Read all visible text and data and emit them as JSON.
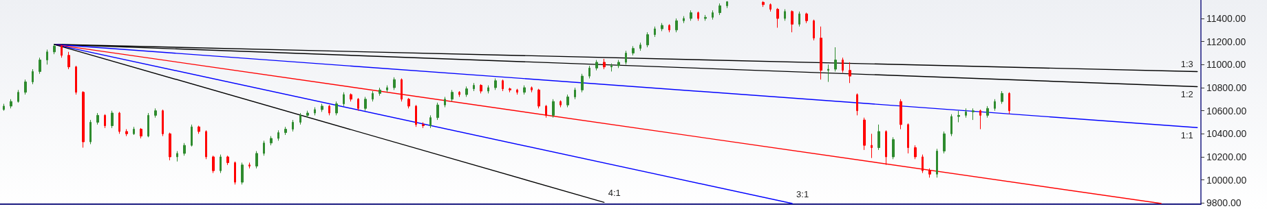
{
  "chart_data": {
    "type": "candlestick",
    "categories": [
      null,
      null,
      null,
      null,
      null,
      null,
      null,
      null,
      null,
      null,
      null,
      null,
      null,
      null,
      null,
      null,
      null,
      null,
      null,
      null,
      null,
      null,
      null,
      null,
      null,
      null,
      null,
      null,
      null,
      null,
      null,
      null,
      null,
      null,
      null,
      null,
      null,
      null,
      null,
      null,
      null,
      null,
      null,
      null,
      null,
      null,
      null,
      null,
      null,
      null,
      null,
      null,
      null,
      null,
      null,
      null,
      null,
      null,
      null,
      null,
      null,
      null,
      null,
      null,
      null,
      null,
      null,
      null,
      null,
      null,
      null,
      null,
      null,
      null,
      null,
      null,
      null,
      null,
      null,
      null,
      null,
      null,
      null,
      null,
      null,
      null,
      null,
      null,
      null,
      null,
      null,
      null,
      null,
      null,
      null,
      null,
      null,
      null,
      null,
      null,
      null,
      null,
      null,
      null,
      null,
      null,
      null,
      null,
      null,
      null,
      null,
      null,
      null,
      null,
      null,
      null,
      null,
      null,
      null,
      null,
      null,
      null,
      null,
      null,
      null,
      null,
      null,
      null,
      null,
      null,
      null,
      null,
      null,
      null,
      null,
      null,
      null,
      null,
      null,
      null,
      null,
      null,
      null,
      null,
      null,
      null,
      null,
      null,
      null,
      null,
      null,
      null,
      null,
      null,
      null,
      null,
      null,
      null,
      null,
      null,
      null,
      null,
      null,
      null,
      null,
      null
    ],
    "ohlc": [
      [
        10610,
        10660,
        10600,
        10640
      ],
      [
        10640,
        10700,
        10620,
        10680
      ],
      [
        10680,
        10780,
        10670,
        10760
      ],
      [
        10760,
        10870,
        10740,
        10850
      ],
      [
        10850,
        10960,
        10830,
        10940
      ],
      [
        10940,
        11060,
        10920,
        11040
      ],
      [
        11040,
        11130,
        11000,
        11110
      ],
      [
        11110,
        11175,
        11090,
        11160
      ],
      [
        11160,
        11170,
        11060,
        11080
      ],
      [
        11080,
        11110,
        10960,
        10980
      ],
      [
        10980,
        10990,
        10740,
        10760
      ],
      [
        10760,
        10770,
        10280,
        10330
      ],
      [
        10330,
        10520,
        10310,
        10500
      ],
      [
        10500,
        10580,
        10480,
        10560
      ],
      [
        10560,
        10570,
        10450,
        10470
      ],
      [
        10470,
        10600,
        10450,
        10580
      ],
      [
        10580,
        10590,
        10400,
        10420
      ],
      [
        10420,
        10440,
        10380,
        10400
      ],
      [
        10400,
        10460,
        10390,
        10440
      ],
      [
        10440,
        10450,
        10360,
        10380
      ],
      [
        10380,
        10580,
        10370,
        10560
      ],
      [
        10560,
        10620,
        10540,
        10600
      ],
      [
        10600,
        10610,
        10380,
        10400
      ],
      [
        10400,
        10410,
        10170,
        10200
      ],
      [
        10200,
        10250,
        10160,
        10230
      ],
      [
        10230,
        10320,
        10210,
        10300
      ],
      [
        10300,
        10480,
        10290,
        10460
      ],
      [
        10460,
        10470,
        10400,
        10420
      ],
      [
        10420,
        10430,
        10180,
        10200
      ],
      [
        10200,
        10210,
        10060,
        10080
      ],
      [
        10080,
        10220,
        10060,
        10200
      ],
      [
        10200,
        10210,
        10130,
        10150
      ],
      [
        10150,
        10160,
        9960,
        9980
      ],
      [
        9980,
        10150,
        9960,
        10130
      ],
      [
        10130,
        10150,
        10100,
        10120
      ],
      [
        10120,
        10250,
        10100,
        10230
      ],
      [
        10230,
        10340,
        10210,
        10320
      ],
      [
        10320,
        10380,
        10300,
        10360
      ],
      [
        10360,
        10430,
        10340,
        10410
      ],
      [
        10410,
        10460,
        10390,
        10440
      ],
      [
        10440,
        10520,
        10420,
        10500
      ],
      [
        10500,
        10580,
        10480,
        10560
      ],
      [
        10560,
        10600,
        10540,
        10580
      ],
      [
        10580,
        10630,
        10560,
        10610
      ],
      [
        10610,
        10660,
        10590,
        10640
      ],
      [
        10640,
        10650,
        10560,
        10580
      ],
      [
        10580,
        10680,
        10560,
        10660
      ],
      [
        10660,
        10760,
        10640,
        10740
      ],
      [
        10740,
        10750,
        10680,
        10700
      ],
      [
        10700,
        10710,
        10600,
        10620
      ],
      [
        10620,
        10720,
        10600,
        10700
      ],
      [
        10700,
        10770,
        10680,
        10750
      ],
      [
        10750,
        10800,
        10730,
        10780
      ],
      [
        10780,
        10820,
        10760,
        10800
      ],
      [
        10800,
        10890,
        10780,
        10870
      ],
      [
        10870,
        10880,
        10680,
        10700
      ],
      [
        10700,
        10710,
        10620,
        10640
      ],
      [
        10640,
        10650,
        10460,
        10480
      ],
      [
        10480,
        10500,
        10450,
        10470
      ],
      [
        10470,
        10560,
        10450,
        10540
      ],
      [
        10540,
        10670,
        10520,
        10650
      ],
      [
        10650,
        10720,
        10630,
        10700
      ],
      [
        10700,
        10780,
        10680,
        10760
      ],
      [
        10760,
        10770,
        10720,
        10740
      ],
      [
        10740,
        10810,
        10720,
        10790
      ],
      [
        10790,
        10840,
        10770,
        10820
      ],
      [
        10820,
        10830,
        10750,
        10770
      ],
      [
        10770,
        10820,
        10750,
        10800
      ],
      [
        10800,
        10880,
        10780,
        10860
      ],
      [
        10860,
        10870,
        10770,
        10790
      ],
      [
        10790,
        10800,
        10760,
        10780
      ],
      [
        10780,
        10790,
        10740,
        10760
      ],
      [
        10760,
        10820,
        10740,
        10800
      ],
      [
        10800,
        10810,
        10760,
        10780
      ],
      [
        10780,
        10790,
        10620,
        10640
      ],
      [
        10640,
        10650,
        10540,
        10560
      ],
      [
        10560,
        10700,
        10540,
        10680
      ],
      [
        10680,
        10690,
        10630,
        10650
      ],
      [
        10650,
        10740,
        10630,
        10720
      ],
      [
        10720,
        10800,
        10700,
        10780
      ],
      [
        10780,
        10920,
        10760,
        10900
      ],
      [
        10900,
        10990,
        10880,
        10970
      ],
      [
        10970,
        11040,
        10950,
        11020
      ],
      [
        11020,
        11050,
        10960,
        10980
      ],
      [
        10980,
        11010,
        10940,
        10990
      ],
      [
        10990,
        11040,
        10970,
        11020
      ],
      [
        11020,
        11120,
        11000,
        11100
      ],
      [
        11100,
        11160,
        11080,
        11140
      ],
      [
        11140,
        11190,
        11120,
        11170
      ],
      [
        11170,
        11280,
        11150,
        11260
      ],
      [
        11260,
        11330,
        11240,
        11310
      ],
      [
        11310,
        11360,
        11290,
        11340
      ],
      [
        11340,
        11350,
        11280,
        11300
      ],
      [
        11300,
        11400,
        11280,
        11380
      ],
      [
        11380,
        11420,
        11360,
        11400
      ],
      [
        11400,
        11470,
        11380,
        11450
      ],
      [
        11450,
        11460,
        11380,
        11400
      ],
      [
        11400,
        11430,
        11380,
        11410
      ],
      [
        11410,
        11470,
        11390,
        11450
      ],
      [
        11450,
        11530,
        11430,
        11510
      ],
      [
        11510,
        11550,
        11490,
        11545
      ],
      null,
      null,
      null,
      null,
      [
        11540,
        11550,
        11500,
        11520
      ],
      [
        11520,
        11530,
        11460,
        11480
      ],
      [
        11480,
        11490,
        11320,
        11400
      ],
      [
        11400,
        11480,
        11380,
        11460
      ],
      [
        11460,
        11470,
        11280,
        11350
      ],
      [
        11350,
        11460,
        11330,
        11440
      ],
      [
        11440,
        11450,
        11360,
        11380
      ],
      [
        11380,
        11390,
        11210,
        11230
      ],
      [
        11230,
        11330,
        10870,
        10950
      ],
      [
        10950,
        11000,
        10850,
        10960
      ],
      [
        10960,
        11150,
        10940,
        11040
      ],
      [
        11040,
        11060,
        10930,
        10950
      ],
      [
        10950,
        11020,
        10840,
        10900
      ],
      [
        10740,
        10750,
        10560,
        10600
      ],
      [
        10520,
        10540,
        10260,
        10300
      ],
      [
        10300,
        10400,
        10190,
        10280
      ],
      [
        10280,
        10480,
        10260,
        10420
      ],
      [
        10420,
        10430,
        10130,
        10200
      ],
      [
        10200,
        10370,
        10180,
        10350
      ],
      [
        10680,
        10700,
        10440,
        10480
      ],
      [
        10480,
        10490,
        10230,
        10280
      ],
      [
        10280,
        10300,
        10180,
        10200
      ],
      [
        10200,
        10220,
        10060,
        10080
      ],
      [
        10080,
        10100,
        10020,
        10050
      ],
      [
        10050,
        10270,
        10020,
        10250
      ],
      [
        10250,
        10420,
        10230,
        10400
      ],
      [
        10400,
        10570,
        10380,
        10550
      ],
      [
        10550,
        10600,
        10500,
        10560
      ],
      [
        10560,
        10620,
        10540,
        10590
      ],
      [
        10590,
        10620,
        10520,
        10600
      ],
      [
        10600,
        10610,
        10440,
        10560
      ],
      [
        10560,
        10640,
        10540,
        10620
      ],
      [
        10620,
        10700,
        10600,
        10680
      ],
      [
        10680,
        10770,
        10660,
        10750
      ],
      [
        10750,
        10760,
        10570,
        10600
      ],
      null,
      null,
      null,
      null,
      null,
      null,
      null,
      null,
      null,
      null,
      null,
      null,
      null,
      null,
      null,
      null,
      null,
      null,
      null,
      null,
      null,
      null,
      null,
      null,
      null,
      null
    ],
    "colors": [
      "#2e8b2e",
      "#2e8b2e",
      "#2e8b2e",
      "#2e8b2e",
      "#2e8b2e",
      "#2e8b2e",
      "#2e8b2e",
      "#2e8b2e",
      "#ff0000",
      "#ff0000",
      "#ff0000",
      "#ff0000",
      "#2e8b2e",
      "#2e8b2e",
      "#ff0000",
      "#2e8b2e",
      "#ff0000",
      "#ff0000",
      "#2e8b2e",
      "#ff0000",
      "#2e8b2e",
      "#2e8b2e",
      "#ff0000",
      "#ff0000",
      "#2e8b2e",
      "#2e8b2e",
      "#2e8b2e",
      "#ff0000",
      "#ff0000",
      "#ff0000",
      "#2e8b2e",
      "#ff0000",
      "#ff0000",
      "#2e8b2e",
      "#ff0000",
      "#2e8b2e",
      "#2e8b2e",
      "#2e8b2e",
      "#2e8b2e",
      "#2e8b2e",
      "#2e8b2e",
      "#2e8b2e",
      "#2e8b2e",
      "#2e8b2e",
      "#2e8b2e",
      "#ff0000",
      "#2e8b2e",
      "#2e8b2e",
      "#ff0000",
      "#ff0000",
      "#2e8b2e",
      "#2e8b2e",
      "#2e8b2e",
      "#2e8b2e",
      "#2e8b2e",
      "#ff0000",
      "#ff0000",
      "#ff0000",
      "#ff0000",
      "#2e8b2e",
      "#2e8b2e",
      "#2e8b2e",
      "#2e8b2e",
      "#ff0000",
      "#2e8b2e",
      "#2e8b2e",
      "#ff0000",
      "#2e8b2e",
      "#2e8b2e",
      "#ff0000",
      "#ff0000",
      "#ff0000",
      "#2e8b2e",
      "#ff0000",
      "#ff0000",
      "#ff0000",
      "#2e8b2e",
      "#ff0000",
      "#2e8b2e",
      "#2e8b2e",
      "#2e8b2e",
      "#2e8b2e",
      "#2e8b2e",
      "#ff0000",
      "#2e8b2e",
      "#2e8b2e",
      "#2e8b2e",
      "#2e8b2e",
      "#2e8b2e",
      "#2e8b2e",
      "#2e8b2e",
      "#2e8b2e",
      "#ff0000",
      "#2e8b2e",
      "#2e8b2e",
      "#2e8b2e",
      "#ff0000",
      "#2e8b2e",
      "#2e8b2e",
      "#2e8b2e",
      "#2e8b2e",
      null,
      null,
      null,
      null,
      "#ff0000",
      "#ff0000",
      "#ff0000",
      "#2e8b2e",
      "#ff0000",
      "#2e8b2e",
      "#ff0000",
      "#ff0000",
      "#ff0000",
      "#2e8b2e",
      "#2e8b2e",
      "#ff0000",
      "#ff0000",
      "#ff0000",
      "#ff0000",
      "#ff0000",
      "#2e8b2e",
      "#ff0000",
      "#2e8b2e",
      "#ff0000",
      "#ff0000",
      "#ff0000",
      "#ff0000",
      "#ff0000",
      "#2e8b2e",
      "#2e8b2e",
      "#2e8b2e",
      "#2e8b2e",
      "#2e8b2e",
      "#2e8b2e",
      "#ff0000",
      "#2e8b2e",
      "#2e8b2e",
      "#2e8b2e",
      "#ff0000",
      null,
      null,
      null,
      null,
      null,
      null,
      null,
      null,
      null,
      null,
      null,
      null,
      null,
      null,
      null,
      null,
      null,
      null,
      null,
      null,
      null,
      null,
      null,
      null,
      null,
      null
    ],
    "series": [
      {
        "name": "1:3",
        "type": "line",
        "color": "#000000",
        "values": [
          null,
          null,
          null,
          null,
          null,
          null,
          null,
          11175,
          null,
          null,
          null,
          null,
          null,
          null,
          null,
          null,
          null,
          null,
          null,
          null,
          null,
          null,
          null,
          null,
          null,
          null,
          null,
          null,
          null,
          null,
          null,
          null,
          null,
          null,
          null,
          null,
          null,
          null,
          null,
          null,
          null,
          null,
          null,
          null,
          null,
          null,
          null,
          null,
          null,
          null,
          null,
          null,
          null,
          null,
          null,
          null,
          null,
          null,
          null,
          null,
          null,
          null,
          null,
          null,
          null,
          null,
          null,
          null,
          null,
          null,
          null,
          null,
          null,
          null,
          null,
          null,
          null,
          null,
          null,
          null,
          null,
          null,
          null,
          null,
          null,
          null,
          null,
          null,
          null,
          null,
          null,
          null,
          null,
          null,
          null,
          null,
          null,
          null,
          null,
          null,
          null,
          null,
          null,
          null,
          null,
          null,
          null,
          null,
          null,
          null,
          null,
          null,
          null,
          null,
          null,
          null,
          null,
          null,
          null,
          null,
          null,
          null,
          null,
          null,
          null,
          null,
          null,
          null,
          null,
          null,
          null,
          null,
          null,
          null,
          null,
          null,
          null,
          null,
          null,
          null,
          null,
          null,
          null,
          null,
          null,
          null,
          null,
          null,
          null,
          null,
          null,
          null,
          null,
          null,
          null,
          null,
          null,
          null,
          null,
          null,
          null,
          null,
          null,
          null,
          null,
          10939
        ]
      },
      {
        "name": "1:2",
        "type": "line",
        "color": "#000000",
        "values": [
          null,
          null,
          null,
          null,
          null,
          null,
          null,
          11175,
          null,
          null,
          null,
          null,
          null,
          null,
          null,
          null,
          null,
          null,
          null,
          null,
          null,
          null,
          null,
          null,
          null,
          null,
          null,
          null,
          null,
          null,
          null,
          null,
          null,
          null,
          null,
          null,
          null,
          null,
          null,
          null,
          null,
          null,
          null,
          null,
          null,
          null,
          null,
          null,
          null,
          null,
          null,
          null,
          null,
          null,
          null,
          null,
          null,
          null,
          null,
          null,
          null,
          null,
          null,
          null,
          null,
          null,
          null,
          null,
          null,
          null,
          null,
          null,
          null,
          null,
          null,
          null,
          null,
          null,
          null,
          null,
          null,
          null,
          null,
          null,
          null,
          null,
          null,
          null,
          null,
          null,
          null,
          null,
          null,
          null,
          null,
          null,
          null,
          null,
          null,
          null,
          null,
          null,
          null,
          null,
          null,
          null,
          null,
          null,
          null,
          null,
          null,
          null,
          null,
          null,
          null,
          null,
          null,
          null,
          null,
          null,
          null,
          null,
          null,
          null,
          null,
          null,
          null,
          null,
          null,
          null,
          null,
          null,
          null,
          null,
          null,
          null,
          null,
          null,
          null,
          null,
          null,
          null,
          null,
          null,
          null,
          null,
          null,
          null,
          null,
          null,
          null,
          null,
          null,
          null,
          null,
          null,
          null,
          null,
          null,
          null,
          null,
          null,
          null,
          null,
          null,
          10809
        ]
      },
      {
        "name": "1:1",
        "type": "line",
        "color": "#0000ff",
        "values": [
          null,
          null,
          null,
          null,
          null,
          null,
          null,
          11175,
          null,
          null,
          null,
          null,
          null,
          null,
          null,
          null,
          null,
          null,
          null,
          null,
          null,
          null,
          null,
          null,
          null,
          null,
          null,
          null,
          null,
          null,
          null,
          null,
          null,
          null,
          null,
          null,
          null,
          null,
          null,
          null,
          null,
          null,
          null,
          null,
          null,
          null,
          null,
          null,
          null,
          null,
          null,
          null,
          null,
          null,
          null,
          null,
          null,
          null,
          null,
          null,
          null,
          null,
          null,
          null,
          null,
          null,
          null,
          null,
          null,
          null,
          null,
          null,
          null,
          null,
          null,
          null,
          null,
          null,
          null,
          null,
          null,
          null,
          null,
          null,
          null,
          null,
          null,
          null,
          null,
          null,
          null,
          null,
          null,
          null,
          null,
          null,
          null,
          null,
          null,
          null,
          null,
          null,
          null,
          null,
          null,
          null,
          null,
          null,
          null,
          null,
          null,
          null,
          null,
          null,
          null,
          null,
          null,
          null,
          null,
          null,
          null,
          null,
          null,
          null,
          null,
          null,
          null,
          null,
          null,
          null,
          null,
          null,
          null,
          null,
          null,
          null,
          null,
          null,
          null,
          null,
          null,
          null,
          null,
          null,
          null,
          null,
          null,
          null,
          null,
          null,
          null,
          null,
          null,
          null,
          null,
          null,
          null,
          null,
          null,
          null,
          null,
          null,
          null,
          null,
          null,
          10454
        ]
      },
      {
        "type": "line",
        "color": "#ff0000",
        "values": [
          null,
          null,
          null,
          null,
          null,
          null,
          null,
          11175,
          null,
          null,
          null,
          null,
          null,
          null,
          null,
          null,
          null,
          null,
          null,
          null,
          null,
          null,
          null,
          null,
          null,
          null,
          null,
          null,
          null,
          null,
          null,
          null,
          null,
          null,
          null,
          null,
          null,
          null,
          null,
          null,
          null,
          null,
          null,
          null,
          null,
          null,
          null,
          null,
          null,
          null,
          null,
          null,
          null,
          null,
          null,
          null,
          null,
          null,
          null,
          null,
          null,
          null,
          null,
          null,
          null,
          null,
          null,
          null,
          null,
          null,
          null,
          null,
          null,
          null,
          null,
          null,
          null,
          null,
          null,
          null,
          null,
          null,
          null,
          null,
          null,
          null,
          null,
          null,
          null,
          null,
          null,
          null,
          null,
          null,
          null,
          null,
          null,
          null,
          null,
          null,
          null,
          null,
          null,
          null,
          null,
          null,
          null,
          null,
          null,
          null,
          null,
          null,
          null,
          null,
          null,
          null,
          null,
          null,
          null,
          null,
          null,
          null,
          null,
          null,
          null,
          null,
          null,
          null,
          null,
          null,
          null,
          null,
          null,
          null,
          null,
          null,
          null,
          null,
          null,
          null,
          null,
          null,
          null,
          null,
          null,
          null,
          null,
          null,
          null,
          null,
          null,
          null,
          null,
          null,
          null,
          null,
          null,
          null,
          null,
          null,
          9796,
          null,
          null,
          null,
          null,
          null
        ]
      },
      {
        "name": "3:1",
        "type": "line",
        "color": "#0000ff",
        "values": [
          null,
          null,
          null,
          null,
          null,
          null,
          null,
          11175,
          null,
          null,
          null,
          null,
          null,
          null,
          null,
          null,
          null,
          null,
          null,
          null,
          null,
          null,
          null,
          null,
          null,
          null,
          null,
          null,
          null,
          null,
          null,
          null,
          null,
          null,
          null,
          null,
          null,
          null,
          null,
          null,
          null,
          null,
          null,
          null,
          null,
          null,
          null,
          null,
          null,
          null,
          null,
          null,
          null,
          null,
          null,
          null,
          null,
          null,
          null,
          null,
          null,
          null,
          null,
          null,
          null,
          null,
          null,
          null,
          null,
          null,
          null,
          null,
          null,
          null,
          null,
          null,
          null,
          null,
          null,
          null,
          null,
          null,
          null,
          null,
          null,
          null,
          null,
          null,
          null,
          null,
          null,
          null,
          null,
          null,
          null,
          null,
          null,
          null,
          null,
          null,
          null,
          null,
          null,
          null,
          null,
          null,
          null,
          null,
          null,
          9796,
          null,
          null,
          null,
          null,
          null,
          null,
          null,
          null,
          null,
          null,
          null,
          null,
          null,
          null,
          null,
          null,
          null,
          null,
          null,
          null,
          null,
          null,
          null,
          null,
          null,
          null,
          null,
          null,
          null,
          null,
          null,
          null,
          null,
          null,
          null,
          null,
          null,
          null,
          null,
          null,
          null,
          null,
          null,
          null,
          null,
          null,
          null,
          null,
          null,
          null,
          null,
          null,
          null,
          null,
          null,
          null
        ]
      },
      {
        "name": "4:1",
        "type": "line",
        "color": "#000000",
        "values": [
          null,
          null,
          null,
          null,
          null,
          null,
          null,
          11175,
          null,
          null,
          null,
          null,
          null,
          null,
          null,
          null,
          null,
          null,
          null,
          null,
          null,
          null,
          null,
          null,
          null,
          null,
          null,
          null,
          null,
          null,
          null,
          null,
          null,
          null,
          null,
          null,
          null,
          null,
          null,
          null,
          null,
          null,
          null,
          null,
          null,
          null,
          null,
          null,
          null,
          null,
          null,
          null,
          null,
          null,
          null,
          null,
          null,
          null,
          null,
          null,
          null,
          null,
          null,
          null,
          null,
          null,
          null,
          null,
          null,
          null,
          null,
          null,
          null,
          null,
          null,
          null,
          null,
          null,
          null,
          null,
          null,
          null,
          null,
          9806,
          null,
          null,
          null,
          null,
          null,
          null,
          null,
          null,
          null,
          null,
          null,
          null,
          null,
          null,
          null,
          null,
          null,
          null,
          null,
          null,
          null,
          null,
          null,
          null,
          null,
          null,
          null,
          null,
          null,
          null,
          null,
          null,
          null,
          null,
          null,
          null,
          null,
          null,
          null,
          null,
          null,
          null,
          null,
          null,
          null,
          null,
          null,
          null,
          null,
          null,
          null,
          null,
          null,
          null,
          null,
          null,
          null,
          null,
          null,
          null,
          null,
          null,
          null,
          null,
          null,
          null,
          null,
          null,
          null,
          null,
          null,
          null,
          null,
          null,
          null,
          null,
          null,
          null,
          null,
          null,
          null,
          null
        ]
      }
    ],
    "ylim": [
      9790,
      11560
    ],
    "yticks": [
      {
        "value": 9800,
        "label": "9800.00"
      },
      {
        "value": 10000,
        "label": "10000.00"
      },
      {
        "value": 10200,
        "label": "10200.00"
      },
      {
        "value": 10400,
        "label": "10400.00"
      },
      {
        "value": 10600,
        "label": "10600.00"
      },
      {
        "value": 10800,
        "label": "10800.00"
      },
      {
        "value": 11000,
        "label": "11000.00"
      },
      {
        "value": 11200,
        "label": "11200.00"
      },
      {
        "value": 11400,
        "label": "11400.00"
      }
    ],
    "tick_labels": "y",
    "grid": false
  }
}
